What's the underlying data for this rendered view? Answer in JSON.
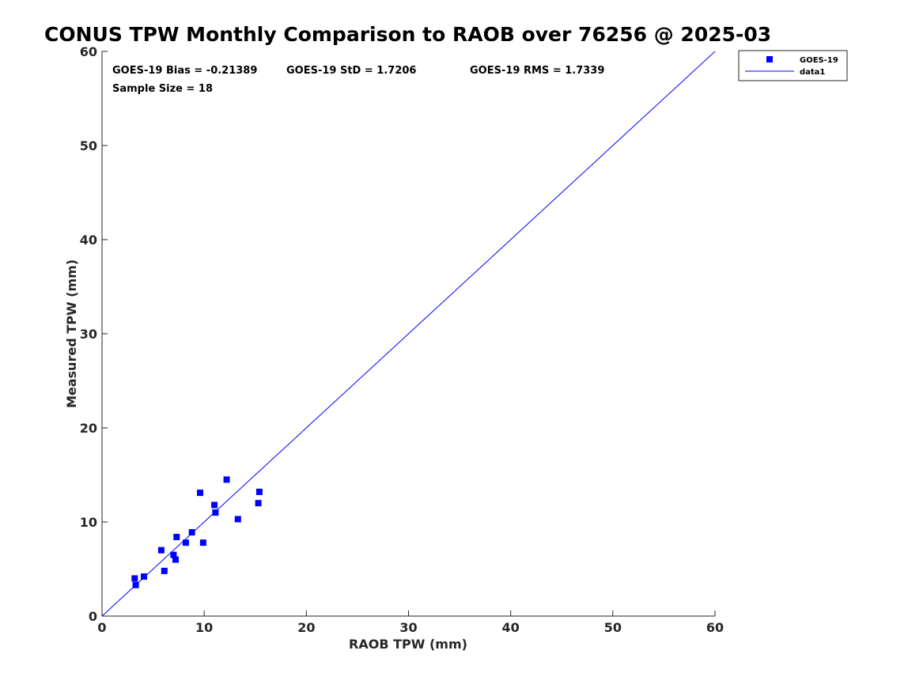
{
  "chart_data": {
    "type": "scatter",
    "title": "CONUS TPW Monthly Comparison to RAOB over 76256 @ 2025-03",
    "xlabel": "RAOB TPW (mm)",
    "ylabel": "Measured TPW (mm)",
    "xlim": [
      0,
      60
    ],
    "ylim": [
      0,
      60
    ],
    "xticks": [
      0,
      10,
      20,
      30,
      40,
      50,
      60
    ],
    "yticks": [
      0,
      10,
      20,
      30,
      40,
      50,
      60
    ],
    "grid": false,
    "legend_position": "outside-top-right",
    "colors": {
      "series": "#0000ff",
      "axis": "#262626"
    },
    "stats": {
      "bias": "GOES-19 Bias = -0.21389",
      "std": "GOES-19 StD = 1.7206",
      "rms": "GOES-19 RMS = 1.7339",
      "sample": "Sample Size = 18"
    },
    "series": [
      {
        "name": "GOES-19",
        "marker": "square",
        "x": [
          3.2,
          3.3,
          4.1,
          5.8,
          6.1,
          7.0,
          7.2,
          7.3,
          8.2,
          8.8,
          9.6,
          9.9,
          11.0,
          11.1,
          12.2,
          13.3,
          15.3,
          15.4
        ],
        "y": [
          4.0,
          3.3,
          4.2,
          7.0,
          4.8,
          6.5,
          6.0,
          8.4,
          7.8,
          8.9,
          13.1,
          7.8,
          11.8,
          11.0,
          14.5,
          10.3,
          12.0,
          13.2
        ]
      },
      {
        "name": "data1",
        "type": "line",
        "x": [
          0,
          60
        ],
        "y": [
          0,
          60
        ]
      }
    ]
  }
}
